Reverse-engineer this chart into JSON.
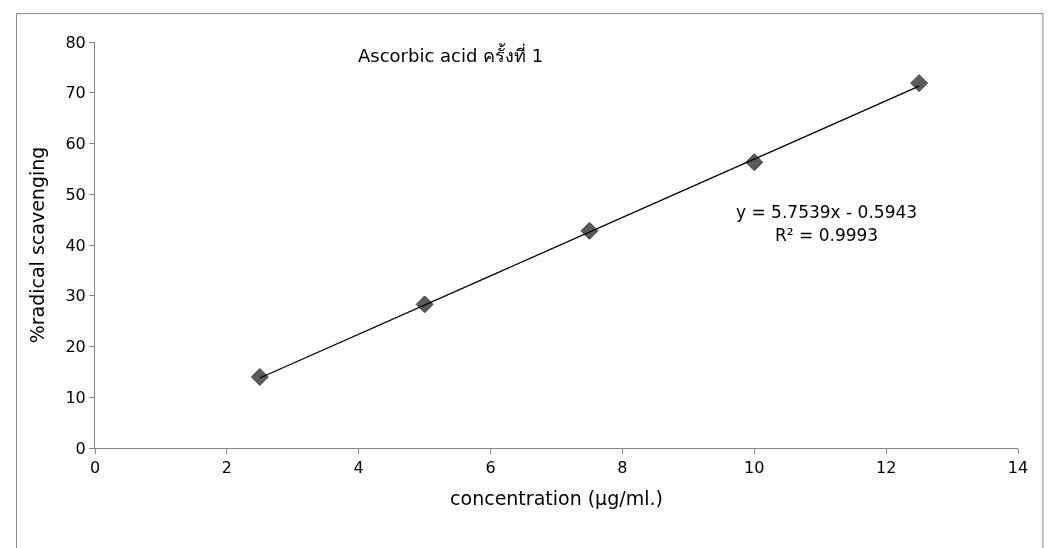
{
  "chart_data": {
    "type": "scatter",
    "title": "Ascorbic acid ครั้งที่ 1",
    "xlabel": "concentration (µg/ml.)",
    "ylabel": "%radical scavenging",
    "series": [
      {
        "color": "#5b5b5b",
        "marker": "diamond",
        "x": [
          2.5,
          5,
          7.5,
          10,
          12.5
        ],
        "values": [
          14,
          28.3,
          42.8,
          56.3,
          71.9
        ]
      },
      {
        "type": "line",
        "color": "#000000",
        "marker": "none",
        "line_style": "solid",
        "x": [
          2.5,
          12.5
        ],
        "values": [
          13.8,
          71.3
        ]
      }
    ],
    "annotations": [
      "y = 5.7539x - 0.5943",
      "R² = 0.9993"
    ],
    "xlim": [
      0,
      14
    ],
    "xticks": [
      0,
      2,
      4,
      6,
      8,
      10,
      12,
      14
    ],
    "ylim": [
      0,
      80
    ],
    "yticks": [
      0,
      10,
      20,
      30,
      40,
      50,
      60,
      70,
      80
    ],
    "grid": false
  }
}
